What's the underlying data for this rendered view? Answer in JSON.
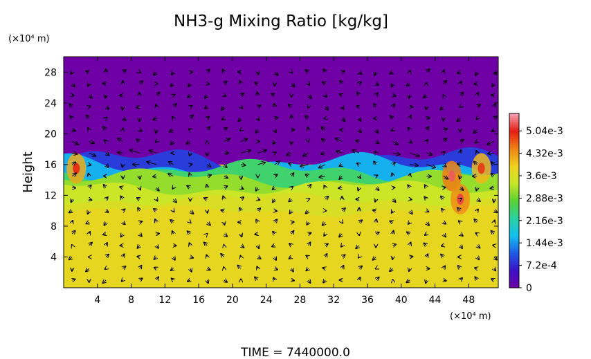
{
  "chart_data": {
    "type": "heatmap",
    "title": "NH3-g Mixing Ratio [kg/kg]",
    "ylabel": "Height",
    "xlabel": "",
    "x_unit": "(×10⁴ m)",
    "y_unit": "(×10⁴ m)",
    "xlim": [
      0,
      51.5
    ],
    "ylim": [
      0,
      30
    ],
    "x_ticks": [
      "4",
      "8",
      "12",
      "16",
      "20",
      "24",
      "28",
      "32",
      "36",
      "40",
      "44",
      "48"
    ],
    "x_tick_values": [
      4,
      8,
      12,
      16,
      20,
      24,
      28,
      32,
      36,
      40,
      44,
      48
    ],
    "y_ticks": [
      "4",
      "8",
      "12",
      "16",
      "20",
      "24",
      "28"
    ],
    "y_tick_values": [
      4,
      8,
      12,
      16,
      20,
      24,
      28
    ],
    "colorbar": {
      "range": [
        0,
        0.0056
      ],
      "labels": [
        "0",
        "7.2e-4",
        "1.44e-3",
        "2.16e-3",
        "2.88e-3",
        "3.6e-3",
        "4.32e-3",
        "5.04e-3"
      ],
      "values": [
        0,
        0.00072,
        0.00144,
        0.00216,
        0.00288,
        0.0036,
        0.00432,
        0.00504
      ],
      "colors": [
        "#6e00a6",
        "#3c10c8",
        "#1e5ae6",
        "#14c0f0",
        "#28d2a0",
        "#5ad232",
        "#c8e628",
        "#f0d21e",
        "#f08214",
        "#e61e14",
        "#f5a0b4"
      ]
    },
    "field": {
      "upper_value": 0.0,
      "lower_value": 0.00398,
      "interface_height": 16,
      "interface_transition": [
        {
          "height": 16.4,
          "value": 0.0009
        },
        {
          "height": 15.9,
          "value": 0.0016
        },
        {
          "height": 15.2,
          "value": 0.0025
        },
        {
          "height": 14.2,
          "value": 0.0031
        },
        {
          "height": 13.0,
          "value": 0.0034
        },
        {
          "height": 11.5,
          "value": 0.0036
        },
        {
          "height": 10.0,
          "value": 0.0038
        }
      ],
      "hotspots": [
        {
          "x": 46,
          "y": 14.5,
          "value": 0.0045
        },
        {
          "x": 47,
          "y": 11.5,
          "value": 0.0044
        },
        {
          "x": 49.5,
          "y": 15.5,
          "value": 0.0041
        },
        {
          "x": 1.5,
          "y": 15.5,
          "value": 0.0042
        }
      ]
    },
    "wind_vectors": "quiver field of flow arrows over the domain",
    "time_label": "TIME = 7440000.0"
  }
}
